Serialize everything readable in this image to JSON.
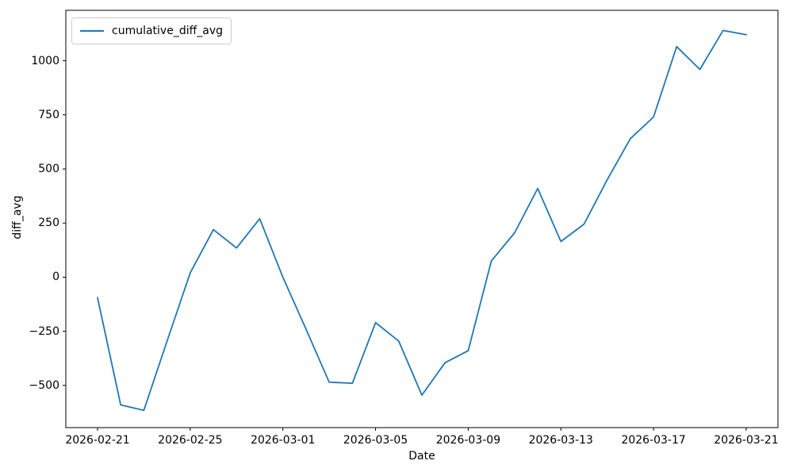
{
  "figure": {
    "background": "#ffffff",
    "frame_color": "#000000"
  },
  "chart_data": {
    "type": "line",
    "title": "",
    "xlabel": "Date",
    "ylabel": "diff_avg",
    "grid": false,
    "legend": {
      "position": "upper-left",
      "entries": [
        {
          "label": "cumulative_diff_avg",
          "color": "#1f77b4"
        }
      ]
    },
    "x": [
      "2026-02-21",
      "2026-02-22",
      "2026-02-23",
      "2026-02-24",
      "2026-02-25",
      "2026-02-26",
      "2026-02-27",
      "2026-02-28",
      "2026-03-01",
      "2026-03-02",
      "2026-03-03",
      "2026-03-04",
      "2026-03-05",
      "2026-03-06",
      "2026-03-07",
      "2026-03-08",
      "2026-03-09",
      "2026-03-10",
      "2026-03-11",
      "2026-03-12",
      "2026-03-13",
      "2026-03-14",
      "2026-03-15",
      "2026-03-16",
      "2026-03-17",
      "2026-03-18",
      "2026-03-19",
      "2026-03-20",
      "2026-03-21"
    ],
    "series": [
      {
        "name": "cumulative_diff_avg",
        "color": "#1f77b4",
        "values": [
          -95,
          -590,
          -615,
          -295,
          20,
          220,
          135,
          270,
          0,
          -240,
          -485,
          -490,
          -210,
          -295,
          -545,
          -395,
          -340,
          75,
          205,
          410,
          165,
          245,
          450,
          640,
          740,
          1065,
          960,
          1140,
          1120
        ]
      }
    ],
    "x_ticks": {
      "indices": [
        0,
        4,
        8,
        12,
        16,
        20,
        24,
        28
      ],
      "labels": [
        "2026-02-21",
        "2026-02-25",
        "2026-03-01",
        "2026-03-05",
        "2026-03-09",
        "2026-03-13",
        "2026-03-17",
        "2026-03-21"
      ]
    },
    "y_ticks": {
      "values": [
        1000,
        750,
        500,
        250,
        0,
        -250,
        -500
      ],
      "labels": [
        "1000",
        "750",
        "500",
        "250",
        "0",
        "−250",
        "−500"
      ]
    },
    "xlim_days": [
      -1.37,
      29.37
    ],
    "ylim": [
      -695,
      1233
    ]
  }
}
